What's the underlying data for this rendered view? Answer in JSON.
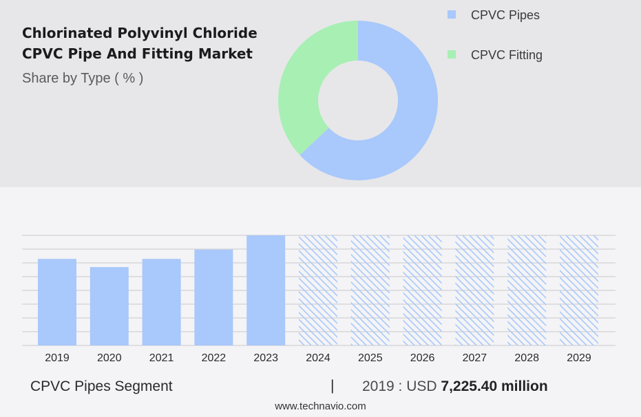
{
  "title": "Chlorinated Polyvinyl Chloride CPVC Pipe And Fitting Market",
  "subtitle": "Share by Type ( % )",
  "legend": [
    {
      "label": "CPVC Pipes",
      "color": "#a9c8fb"
    },
    {
      "label": "CPVC Fitting",
      "color": "#a8efb4"
    }
  ],
  "footer": {
    "segment_label": "CPVC Pipes Segment",
    "separator": "|",
    "value_prefix": "2019 : USD",
    "value_number": "7,225.40 million"
  },
  "source": "www.technavio.com",
  "chart_data": [
    {
      "type": "pie",
      "subtype": "donut",
      "categories": [
        "CPVC Pipes",
        "CPVC Fitting"
      ],
      "values": [
        63,
        37
      ],
      "colors": [
        "#a9c8fb",
        "#a8efb4"
      ],
      "legend_position": "right"
    },
    {
      "type": "bar",
      "categories": [
        "2019",
        "2020",
        "2021",
        "2022",
        "2023",
        "2024",
        "2025",
        "2026",
        "2027",
        "2028",
        "2029"
      ],
      "values": [
        7225.4,
        6540,
        7225,
        8000,
        9190,
        null,
        null,
        null,
        null,
        null,
        null
      ],
      "forecast_from": "2024",
      "bar_color": "#a9c8fb",
      "grid": true,
      "ylim": [
        0,
        9190
      ]
    }
  ]
}
